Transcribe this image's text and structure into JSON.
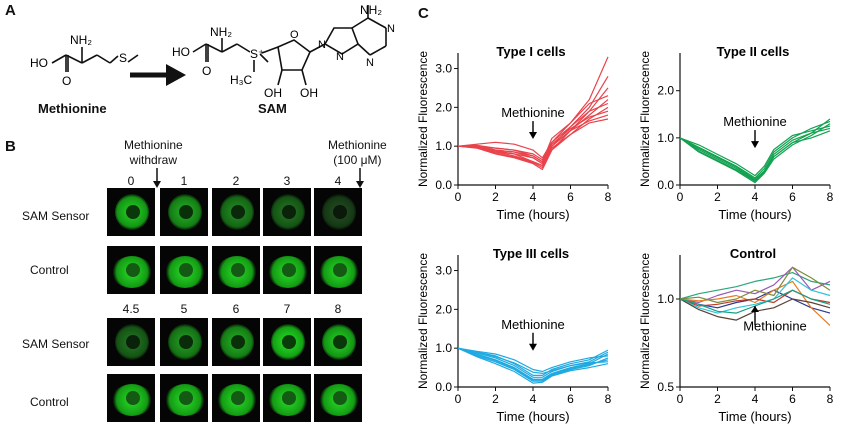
{
  "panelA": {
    "letter": "A",
    "methionine_label": "Methionine",
    "sam_label": "SAM",
    "atoms": {
      "NH2": "NH₂",
      "HO": "HO",
      "O": "O",
      "S": "S",
      "S_plus": "S⁺",
      "H3C": "H₃C",
      "N": "N",
      "OH": "OH"
    }
  },
  "panelB": {
    "letter": "B",
    "withdraw_label_1": "Methionine",
    "withdraw_label_2": "withdraw",
    "add_label_1": "Methionine",
    "add_label_2": "(100 μM)",
    "top_times": [
      "0",
      "1",
      "2",
      "3",
      "4"
    ],
    "bottom_times": [
      "4.5",
      "5",
      "6",
      "7",
      "8"
    ],
    "row_labels": [
      "SAM Sensor",
      "Control",
      "SAM Sensor",
      "Control"
    ],
    "colors": {
      "cell": "#3fae3a",
      "bright": "#7ee06a"
    },
    "sensor_brightness_top": [
      0.9,
      0.7,
      0.5,
      0.35,
      0.12
    ],
    "sensor_brightness_bottom": [
      0.35,
      0.6,
      0.7,
      1.0,
      0.9
    ]
  },
  "panelC": {
    "letter": "C",
    "annotation": "Methionine",
    "charts": [
      {
        "title": "Type I cells",
        "type": "line",
        "xlabel": "Time (hours)",
        "ylabel": "Normalized Fluorescence",
        "xticks": [
          "0",
          "2",
          "4",
          "6",
          "8"
        ],
        "yticks": [
          "0.0",
          "1.0",
          "2.0",
          "3.0"
        ],
        "xlim": [
          0,
          8
        ],
        "ylim": [
          0,
          3.4
        ],
        "color": "#e8434b",
        "x": [
          0,
          1,
          2,
          3,
          4,
          4.5,
          5,
          6,
          7,
          8
        ],
        "series": [
          {
            "values": [
              1.0,
              1.0,
              0.95,
              0.9,
              0.75,
              0.6,
              1.2,
              1.6,
              2.2,
              3.3
            ]
          },
          {
            "values": [
              1.0,
              1.02,
              0.9,
              0.85,
              0.7,
              0.55,
              1.1,
              1.5,
              2.0,
              2.8
            ]
          },
          {
            "values": [
              1.0,
              0.98,
              0.85,
              0.8,
              0.6,
              0.5,
              1.0,
              1.4,
              1.9,
              2.5
            ]
          },
          {
            "values": [
              1.0,
              1.05,
              1.1,
              1.05,
              0.9,
              0.7,
              1.1,
              1.6,
              2.1,
              2.3
            ]
          },
          {
            "values": [
              1.0,
              0.95,
              0.8,
              0.7,
              0.55,
              0.4,
              0.9,
              1.4,
              1.8,
              2.2
            ]
          },
          {
            "values": [
              1.0,
              1.0,
              0.9,
              0.85,
              0.75,
              0.6,
              1.0,
              1.5,
              1.9,
              2.1
            ]
          },
          {
            "values": [
              1.0,
              0.97,
              0.85,
              0.75,
              0.6,
              0.5,
              0.95,
              1.3,
              1.7,
              2.0
            ]
          },
          {
            "values": [
              1.0,
              1.02,
              0.95,
              0.9,
              0.8,
              0.65,
              1.05,
              1.45,
              1.75,
              1.9
            ]
          },
          {
            "values": [
              1.0,
              0.99,
              0.88,
              0.8,
              0.7,
              0.55,
              1.0,
              1.4,
              1.65,
              1.8
            ]
          },
          {
            "values": [
              1.0,
              0.96,
              0.82,
              0.72,
              0.58,
              0.45,
              0.9,
              1.3,
              1.6,
              1.7
            ]
          }
        ]
      },
      {
        "title": "Type II cells",
        "type": "line",
        "xlabel": "Time (hours)",
        "ylabel": "Normalized Fluorescence",
        "xticks": [
          "0",
          "2",
          "4",
          "6",
          "8"
        ],
        "yticks": [
          "0.0",
          "1.0",
          "2.0"
        ],
        "xlim": [
          0,
          8
        ],
        "ylim": [
          0,
          2.8
        ],
        "color": "#12a150",
        "x": [
          0,
          1,
          2,
          3,
          4,
          4.5,
          5,
          6,
          7,
          8
        ],
        "series": [
          {
            "values": [
              1.0,
              0.75,
              0.55,
              0.35,
              0.1,
              0.3,
              0.6,
              0.9,
              1.1,
              1.4
            ]
          },
          {
            "values": [
              1.0,
              0.8,
              0.6,
              0.4,
              0.15,
              0.35,
              0.7,
              1.0,
              1.2,
              1.35
            ]
          },
          {
            "values": [
              1.0,
              0.7,
              0.5,
              0.3,
              0.05,
              0.25,
              0.55,
              0.85,
              1.05,
              1.3
            ]
          },
          {
            "values": [
              1.0,
              0.85,
              0.65,
              0.45,
              0.2,
              0.4,
              0.75,
              1.05,
              1.15,
              1.25
            ]
          },
          {
            "values": [
              1.0,
              0.78,
              0.58,
              0.38,
              0.12,
              0.3,
              0.65,
              0.95,
              1.1,
              1.2
            ]
          },
          {
            "values": [
              1.0,
              0.72,
              0.52,
              0.32,
              0.08,
              0.28,
              0.6,
              0.9,
              1.0,
              1.15
            ]
          }
        ]
      },
      {
        "title": "Type III cells",
        "type": "line",
        "xlabel": "Time (hours)",
        "ylabel": "Normalized Fluorescence",
        "xticks": [
          "0",
          "2",
          "4",
          "6",
          "8"
        ],
        "yticks": [
          "0.0",
          "1.0",
          "2.0",
          "3.0"
        ],
        "xlim": [
          0,
          8
        ],
        "ylim": [
          0,
          3.4
        ],
        "color": "#1fa9e1",
        "x": [
          0,
          1,
          2,
          3,
          4,
          4.5,
          5,
          6,
          7,
          8
        ],
        "series": [
          {
            "values": [
              1.0,
              0.9,
              0.8,
              0.6,
              0.3,
              0.3,
              0.45,
              0.6,
              0.7,
              0.95
            ]
          },
          {
            "values": [
              1.0,
              0.88,
              0.75,
              0.55,
              0.25,
              0.25,
              0.4,
              0.55,
              0.65,
              0.9
            ]
          },
          {
            "values": [
              1.0,
              0.85,
              0.7,
              0.5,
              0.2,
              0.2,
              0.35,
              0.5,
              0.6,
              0.85
            ]
          },
          {
            "values": [
              1.0,
              0.92,
              0.85,
              0.7,
              0.45,
              0.4,
              0.5,
              0.65,
              0.75,
              0.8
            ]
          },
          {
            "values": [
              1.0,
              0.8,
              0.65,
              0.45,
              0.15,
              0.15,
              0.3,
              0.45,
              0.55,
              0.75
            ]
          },
          {
            "values": [
              1.0,
              0.83,
              0.68,
              0.48,
              0.18,
              0.18,
              0.32,
              0.48,
              0.58,
              0.7
            ]
          },
          {
            "values": [
              1.0,
              0.9,
              0.78,
              0.62,
              0.38,
              0.35,
              0.42,
              0.55,
              0.62,
              0.65
            ]
          },
          {
            "values": [
              1.0,
              0.78,
              0.6,
              0.4,
              0.1,
              0.12,
              0.28,
              0.42,
              0.5,
              0.6
            ]
          }
        ]
      },
      {
        "title": "Control",
        "type": "line",
        "xlabel": "Time (hours)",
        "ylabel": "Normalized Fluorescence",
        "xticks": [
          "0",
          "2",
          "4",
          "6",
          "8"
        ],
        "yticks": [
          "0.5",
          "1.0"
        ],
        "xlim": [
          0,
          8
        ],
        "ylim": [
          0.5,
          1.25
        ],
        "x": [
          0,
          1,
          2,
          3,
          4,
          5,
          6,
          7,
          8
        ],
        "series": [
          {
            "color": "#2aa77a",
            "values": [
              1.0,
              1.03,
              1.05,
              1.07,
              1.1,
              1.12,
              1.15,
              1.1,
              1.08
            ]
          },
          {
            "color": "#9b59b6",
            "values": [
              1.0,
              0.98,
              1.02,
              1.05,
              1.03,
              1.08,
              1.18,
              1.05,
              1.1
            ]
          },
          {
            "color": "#2b3a8f",
            "values": [
              1.0,
              0.97,
              0.95,
              0.98,
              1.0,
              1.05,
              1.0,
              0.95,
              0.92
            ]
          },
          {
            "color": "#e67e22",
            "values": [
              1.0,
              0.99,
              1.0,
              1.02,
              0.98,
              1.05,
              1.1,
              0.95,
              0.85
            ]
          },
          {
            "color": "#7f8c3a",
            "values": [
              1.0,
              1.01,
              0.98,
              1.0,
              1.05,
              1.02,
              1.18,
              1.12,
              1.05
            ]
          },
          {
            "color": "#c0392b",
            "values": [
              1.0,
              0.96,
              0.97,
              0.99,
              1.0,
              0.98,
              1.05,
              1.0,
              0.98
            ]
          },
          {
            "color": "#2ec4d6",
            "values": [
              1.0,
              0.95,
              0.92,
              0.95,
              0.97,
              1.0,
              1.12,
              1.05,
              1.02
            ]
          },
          {
            "color": "#5d4037",
            "values": [
              1.0,
              0.94,
              0.9,
              0.88,
              0.93,
              0.95,
              1.0,
              0.98,
              0.95
            ]
          },
          {
            "color": "#16a085",
            "values": [
              1.0,
              0.97,
              0.93,
              0.92,
              0.96,
              1.0,
              1.05,
              1.0,
              0.97
            ]
          }
        ]
      }
    ]
  }
}
